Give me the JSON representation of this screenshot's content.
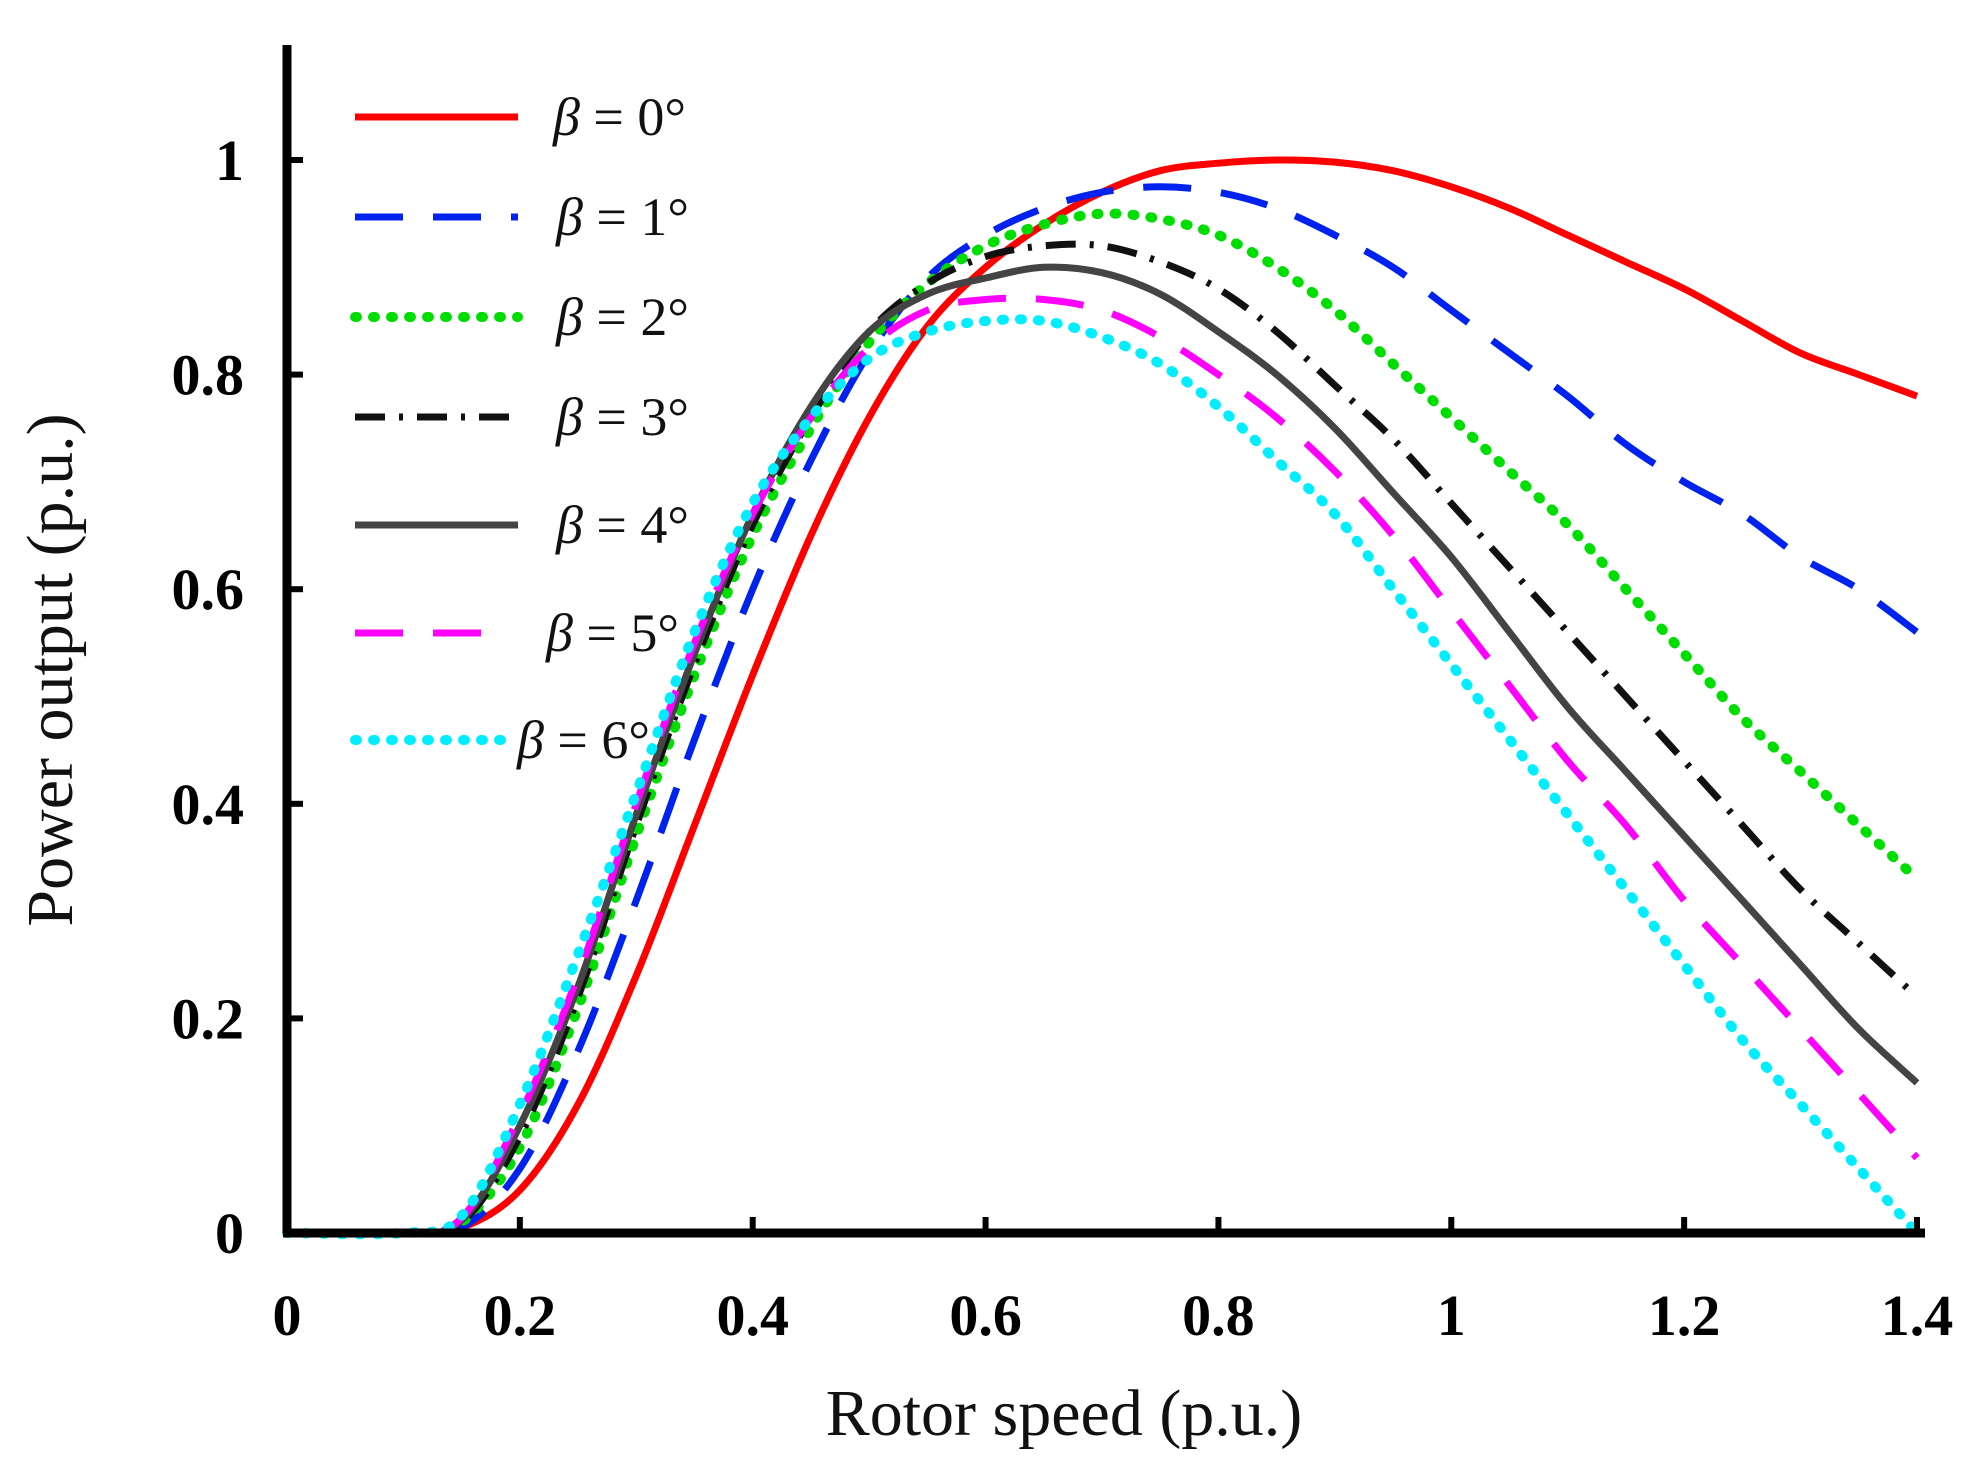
{
  "chart_data": {
    "type": "line",
    "title": "",
    "xlabel": "Rotor speed (p.u.)",
    "ylabel": "Power output (p.u.)",
    "xlim": [
      0,
      1.4
    ],
    "ylim": [
      0,
      1.1
    ],
    "xticks": [
      0,
      0.2,
      0.4,
      0.6,
      0.8,
      1,
      1.2,
      1.4
    ],
    "xtick_labels": [
      "0",
      "0.2",
      "0.4",
      "0.6",
      "0.8",
      "1",
      "1.2",
      "1.4"
    ],
    "yticks": [
      0,
      0.2,
      0.4,
      0.6,
      0.8,
      1
    ],
    "ytick_labels": [
      "0",
      "0.2",
      "0.4",
      "0.6",
      "0.8",
      "1"
    ],
    "grid": false,
    "legend_position": "top-left",
    "series": [
      {
        "name": "β = 0°",
        "color": "#ff0000",
        "style": "solid",
        "x": [
          0,
          0.1,
          0.15,
          0.2,
          0.25,
          0.3,
          0.35,
          0.4,
          0.45,
          0.5,
          0.55,
          0.6,
          0.65,
          0.7,
          0.75,
          0.8,
          0.85,
          0.9,
          0.95,
          1.0,
          1.05,
          1.1,
          1.15,
          1.2,
          1.25,
          1.3,
          1.35,
          1.4
        ],
        "y": [
          0,
          0,
          0.005,
          0.04,
          0.12,
          0.24,
          0.38,
          0.52,
          0.65,
          0.76,
          0.845,
          0.9,
          0.94,
          0.97,
          0.99,
          0.997,
          1.0,
          0.998,
          0.99,
          0.975,
          0.955,
          0.93,
          0.905,
          0.88,
          0.85,
          0.82,
          0.8,
          0.78
        ]
      },
      {
        "name": "β = 1°",
        "color": "#0022ee",
        "style": "dashed",
        "x": [
          0,
          0.1,
          0.15,
          0.2,
          0.25,
          0.3,
          0.35,
          0.4,
          0.45,
          0.5,
          0.55,
          0.6,
          0.65,
          0.7,
          0.75,
          0.8,
          0.85,
          0.9,
          0.95,
          1.0,
          1.05,
          1.1,
          1.15,
          1.2,
          1.25,
          1.3,
          1.35,
          1.4
        ],
        "y": [
          0,
          0,
          0.005,
          0.06,
          0.17,
          0.31,
          0.46,
          0.6,
          0.72,
          0.82,
          0.89,
          0.93,
          0.955,
          0.97,
          0.975,
          0.97,
          0.955,
          0.93,
          0.9,
          0.86,
          0.82,
          0.78,
          0.735,
          0.7,
          0.67,
          0.63,
          0.6,
          0.56
        ]
      },
      {
        "name": "β = 2°",
        "color": "#00dd00",
        "style": "dotted",
        "x": [
          0,
          0.1,
          0.15,
          0.2,
          0.25,
          0.3,
          0.35,
          0.4,
          0.45,
          0.5,
          0.55,
          0.6,
          0.65,
          0.7,
          0.75,
          0.8,
          0.85,
          0.9,
          0.95,
          1.0,
          1.05,
          1.1,
          1.15,
          1.2,
          1.25,
          1.3,
          1.35,
          1.4
        ],
        "y": [
          0,
          0,
          0.01,
          0.08,
          0.21,
          0.37,
          0.52,
          0.65,
          0.75,
          0.83,
          0.885,
          0.92,
          0.94,
          0.95,
          0.945,
          0.93,
          0.9,
          0.86,
          0.81,
          0.76,
          0.71,
          0.66,
          0.6,
          0.54,
          0.48,
          0.43,
          0.38,
          0.33
        ]
      },
      {
        "name": "β = 3°",
        "color": "#111111",
        "style": "dashdot",
        "x": [
          0,
          0.1,
          0.15,
          0.2,
          0.25,
          0.3,
          0.35,
          0.4,
          0.45,
          0.5,
          0.55,
          0.6,
          0.65,
          0.7,
          0.75,
          0.8,
          0.85,
          0.9,
          0.95,
          1.0,
          1.05,
          1.1,
          1.15,
          1.2,
          1.25,
          1.3,
          1.35,
          1.4
        ],
        "y": [
          0,
          0,
          0.01,
          0.09,
          0.22,
          0.38,
          0.53,
          0.66,
          0.76,
          0.84,
          0.885,
          0.91,
          0.92,
          0.92,
          0.905,
          0.88,
          0.84,
          0.79,
          0.74,
          0.68,
          0.62,
          0.56,
          0.5,
          0.44,
          0.38,
          0.32,
          0.27,
          0.22
        ]
      },
      {
        "name": "β = 4°",
        "color": "#444444",
        "style": "solid",
        "x": [
          0,
          0.1,
          0.15,
          0.2,
          0.25,
          0.3,
          0.35,
          0.4,
          0.45,
          0.5,
          0.55,
          0.6,
          0.65,
          0.7,
          0.75,
          0.8,
          0.85,
          0.9,
          0.95,
          1.0,
          1.05,
          1.1,
          1.15,
          1.2,
          1.25,
          1.3,
          1.35,
          1.4
        ],
        "y": [
          0,
          0,
          0.012,
          0.1,
          0.23,
          0.39,
          0.54,
          0.67,
          0.77,
          0.84,
          0.875,
          0.89,
          0.9,
          0.895,
          0.875,
          0.84,
          0.8,
          0.75,
          0.69,
          0.63,
          0.56,
          0.49,
          0.43,
          0.37,
          0.31,
          0.25,
          0.19,
          0.14
        ]
      },
      {
        "name": "β = 5°",
        "color": "#ff00ff",
        "style": "dashed",
        "x": [
          0,
          0.1,
          0.15,
          0.2,
          0.25,
          0.3,
          0.35,
          0.4,
          0.45,
          0.5,
          0.55,
          0.6,
          0.65,
          0.7,
          0.75,
          0.8,
          0.85,
          0.9,
          0.95,
          1.0,
          1.05,
          1.1,
          1.15,
          1.2,
          1.25,
          1.3,
          1.35,
          1.4
        ],
        "y": [
          0,
          0,
          0.014,
          0.11,
          0.24,
          0.4,
          0.55,
          0.67,
          0.76,
          0.825,
          0.86,
          0.87,
          0.87,
          0.86,
          0.835,
          0.8,
          0.76,
          0.71,
          0.65,
          0.58,
          0.51,
          0.44,
          0.38,
          0.31,
          0.25,
          0.19,
          0.13,
          0.07
        ]
      },
      {
        "name": "β = 6°",
        "color": "#00eeff",
        "style": "dotted",
        "x": [
          0,
          0.1,
          0.15,
          0.2,
          0.25,
          0.3,
          0.35,
          0.4,
          0.45,
          0.5,
          0.55,
          0.6,
          0.65,
          0.7,
          0.75,
          0.8,
          0.85,
          0.9,
          0.95,
          1.0,
          1.05,
          1.1,
          1.15,
          1.2,
          1.25,
          1.3,
          1.35,
          1.4
        ],
        "y": [
          0,
          0,
          0.016,
          0.12,
          0.26,
          0.41,
          0.56,
          0.68,
          0.76,
          0.815,
          0.84,
          0.85,
          0.85,
          0.835,
          0.81,
          0.77,
          0.72,
          0.67,
          0.6,
          0.53,
          0.46,
          0.39,
          0.32,
          0.25,
          0.18,
          0.12,
          0.06,
          0.0
        ]
      }
    ]
  }
}
